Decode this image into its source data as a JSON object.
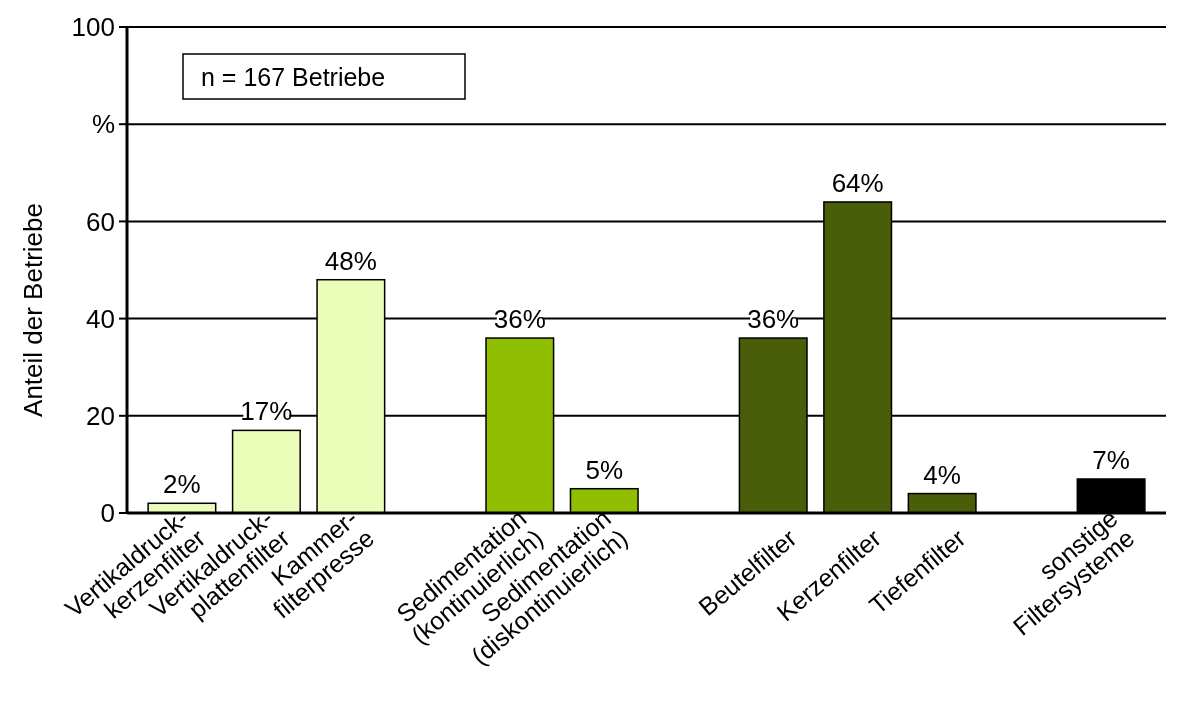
{
  "chart_data": {
    "type": "bar",
    "ylabel": "Anteil der Betriebe",
    "categories": [
      "Vertikaldruck-\nkerzenfilter",
      "Vertikaldruck-\nplattenfilter",
      "Kammer-\nfilterpresse",
      null,
      "Sedimentation\n(kontinuierlich)",
      "Sedimentation\n(diskontinuierlich)",
      null,
      "Beutelfilter",
      "Kerzenfilter",
      "Tiefenfilter",
      null,
      "sonstige\nFiltersysteme"
    ],
    "values": [
      2,
      17,
      48,
      null,
      36,
      5,
      null,
      36,
      64,
      4,
      null,
      7
    ],
    "colors": [
      "#ebfdb9",
      "#ebfdb9",
      "#ebfdb9",
      null,
      "#8fbf00",
      "#8fbf00",
      null,
      "#4a5e0a",
      "#4a5e0a",
      "#4a5e0a",
      null,
      "#000000"
    ],
    "value_labels": [
      "2%",
      "17%",
      "48%",
      null,
      "36%",
      "5%",
      null,
      "36%",
      "64%",
      "4%",
      null,
      "7%"
    ],
    "ylim": [
      0,
      100
    ],
    "yticks": [
      0,
      20,
      40,
      60,
      {
        "value": 80,
        "label": "%"
      },
      100
    ],
    "grid": "y",
    "annotations": [
      "n = 167 Betriebe"
    ]
  }
}
